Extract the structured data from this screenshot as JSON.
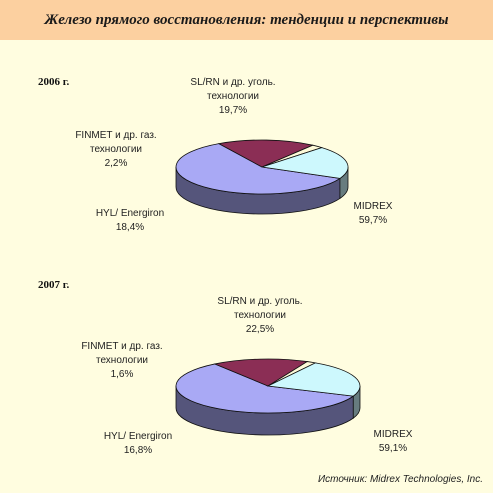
{
  "header": {
    "title": "Железо прямого восстановления: тенденции и перспективы"
  },
  "source": "Источник: Midrex Technologies, Inc.",
  "colors": {
    "header_bg": "#fcd0a0",
    "background": "#fffde0",
    "MIDREX": "#a9a9f5",
    "HYL": "#8b2e55",
    "FINMET": "#fefad8",
    "SLRN": "#cdf8fd"
  },
  "chart_data": [
    {
      "type": "pie",
      "title": "2006 г.",
      "slices": [
        {
          "name": "MIDREX",
          "label_lines": [
            "MIDREX"
          ],
          "value_label": "59,7%",
          "value": 59.7
        },
        {
          "name": "HYL",
          "label_lines": [
            "HYL/ Energiron"
          ],
          "value_label": "18,4%",
          "value": 18.4
        },
        {
          "name": "FINMET",
          "label_lines": [
            "FINMET и др. газ.",
            "технологии"
          ],
          "value_label": "2,2%",
          "value": 2.2
        },
        {
          "name": "SLRN",
          "label_lines": [
            "SL/RN и др. уголь.",
            "технологии"
          ],
          "value_label": "19,7%",
          "value": 19.7
        }
      ]
    },
    {
      "type": "pie",
      "title": "2007 г.",
      "slices": [
        {
          "name": "MIDREX",
          "label_lines": [
            "MIDREX"
          ],
          "value_label": "59,1%",
          "value": 59.1
        },
        {
          "name": "HYL",
          "label_lines": [
            "HYL/ Energiron"
          ],
          "value_label": "16,8%",
          "value": 16.8
        },
        {
          "name": "FINMET",
          "label_lines": [
            "FINMET и др. газ.",
            "технологии"
          ],
          "value_label": "1,6%",
          "value": 1.6
        },
        {
          "name": "SLRN",
          "label_lines": [
            "SL/RN и др. уголь.",
            "технологии"
          ],
          "value_label": "22,5%",
          "value": 22.5
        }
      ]
    }
  ]
}
